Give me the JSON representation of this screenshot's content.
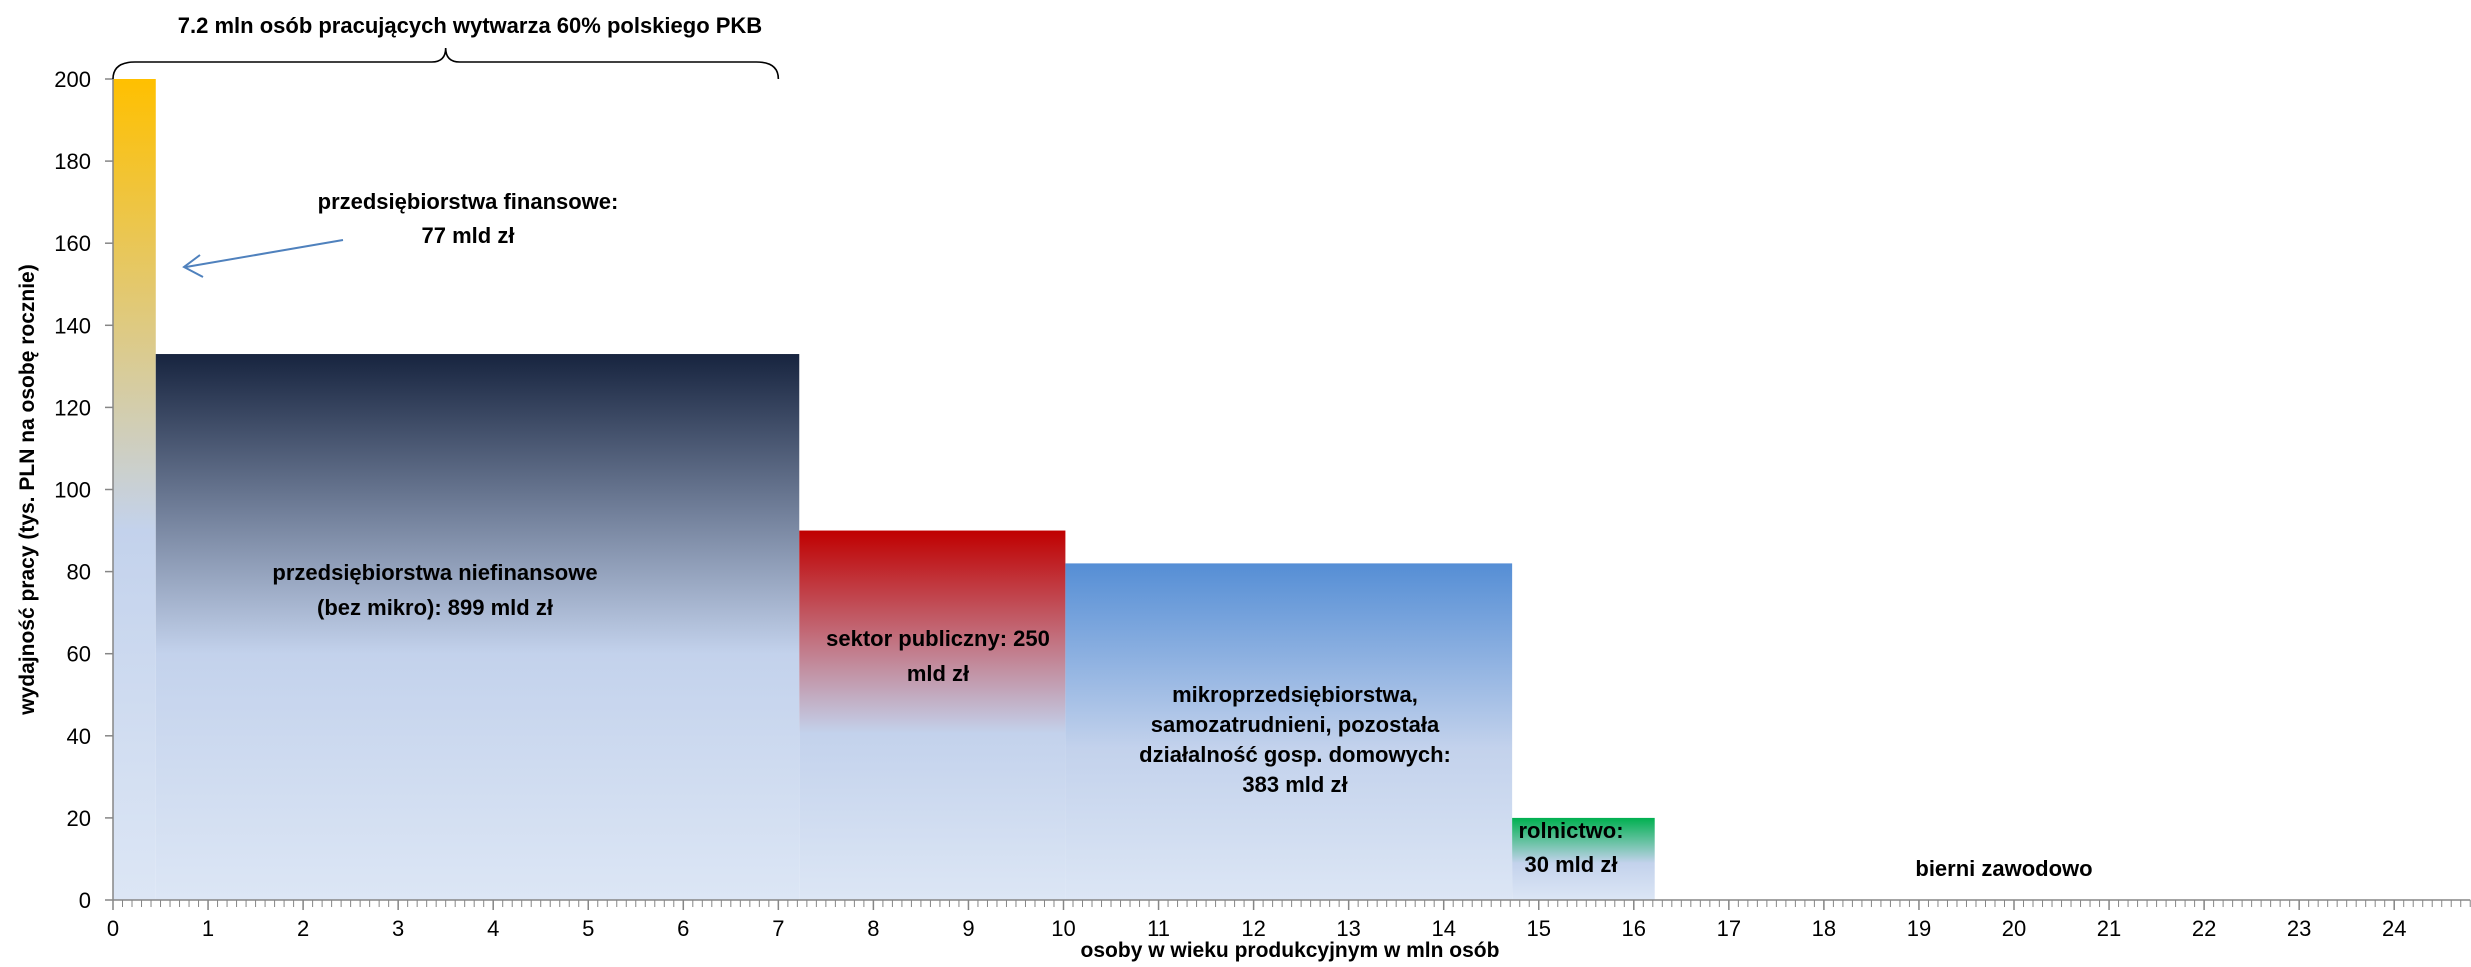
{
  "chart_data": {
    "type": "bar",
    "variant": "variable-width",
    "title": "",
    "xlabel": "osoby w wieku produkcyjnym w mln osób",
    "ylabel": "wydajność pracy (tys. PLN na osobę rocznie)",
    "xlim": [
      0,
      24.8
    ],
    "ylim": [
      0,
      200
    ],
    "x_ticks": [
      "0",
      "1",
      "2",
      "3",
      "4",
      "5",
      "6",
      "7",
      "8",
      "9",
      "10",
      "11",
      "12",
      "13",
      "14",
      "15",
      "16",
      "17",
      "18",
      "19",
      "20",
      "21",
      "22",
      "23",
      "24"
    ],
    "y_ticks": [
      "0",
      "20",
      "40",
      "60",
      "80",
      "100",
      "120",
      "140",
      "160",
      "180",
      "200"
    ],
    "grid": false,
    "legend": "none",
    "segments": [
      {
        "key": "finansowe",
        "x_start": 0.0,
        "x_end": 0.45,
        "value": 200,
        "color_top": "#ffc000",
        "color_bottom": "#dce6f5",
        "label_lines": [
          "przedsiębiorstwa finansowe:",
          "77 mld zł"
        ]
      },
      {
        "key": "niefinansowe",
        "x_start": 0.45,
        "x_end": 7.22,
        "value": 133,
        "color_top": "#17243f",
        "color_bottom": "#dce6f5",
        "label_lines": [
          "przedsiębiorstwa niefinansowe",
          "(bez mikro): 899 mld zł"
        ]
      },
      {
        "key": "publiczny",
        "x_start": 7.22,
        "x_end": 10.02,
        "value": 90,
        "color_top": "#c00000",
        "color_bottom": "#dce6f5",
        "label_lines": [
          "sektor publiczny:  250",
          "mld zł"
        ]
      },
      {
        "key": "mikro",
        "x_start": 10.02,
        "x_end": 14.72,
        "value": 82,
        "color_top": "#558ed5",
        "color_bottom": "#dce6f5",
        "label_lines": [
          "mikroprzedsiębiorstwa,",
          "samozatrudnieni, pozostała",
          "działalność gosp. domowych:",
          "383 mld zł"
        ]
      },
      {
        "key": "rolnictwo",
        "x_start": 14.72,
        "x_end": 16.22,
        "value": 20,
        "color_top": "#00b050",
        "color_bottom": "#dce6f5",
        "label_lines": [
          "rolnictwo:",
          "30 mld zł"
        ]
      },
      {
        "key": "bierni",
        "x_start": 16.22,
        "x_end": 24.8,
        "value": 0,
        "color_top": "#ffffff",
        "color_bottom": "#ffffff",
        "label_lines": [
          "bierni zawodowo"
        ]
      }
    ],
    "annotations": {
      "bracket": {
        "text": "7.2 mln osób pracujących wytwarza 60% polskiego PKB",
        "x_from": 0,
        "x_to": 7.0
      },
      "arrow": {
        "from_segment": "finansowe",
        "color": "#4f81bd"
      }
    }
  }
}
